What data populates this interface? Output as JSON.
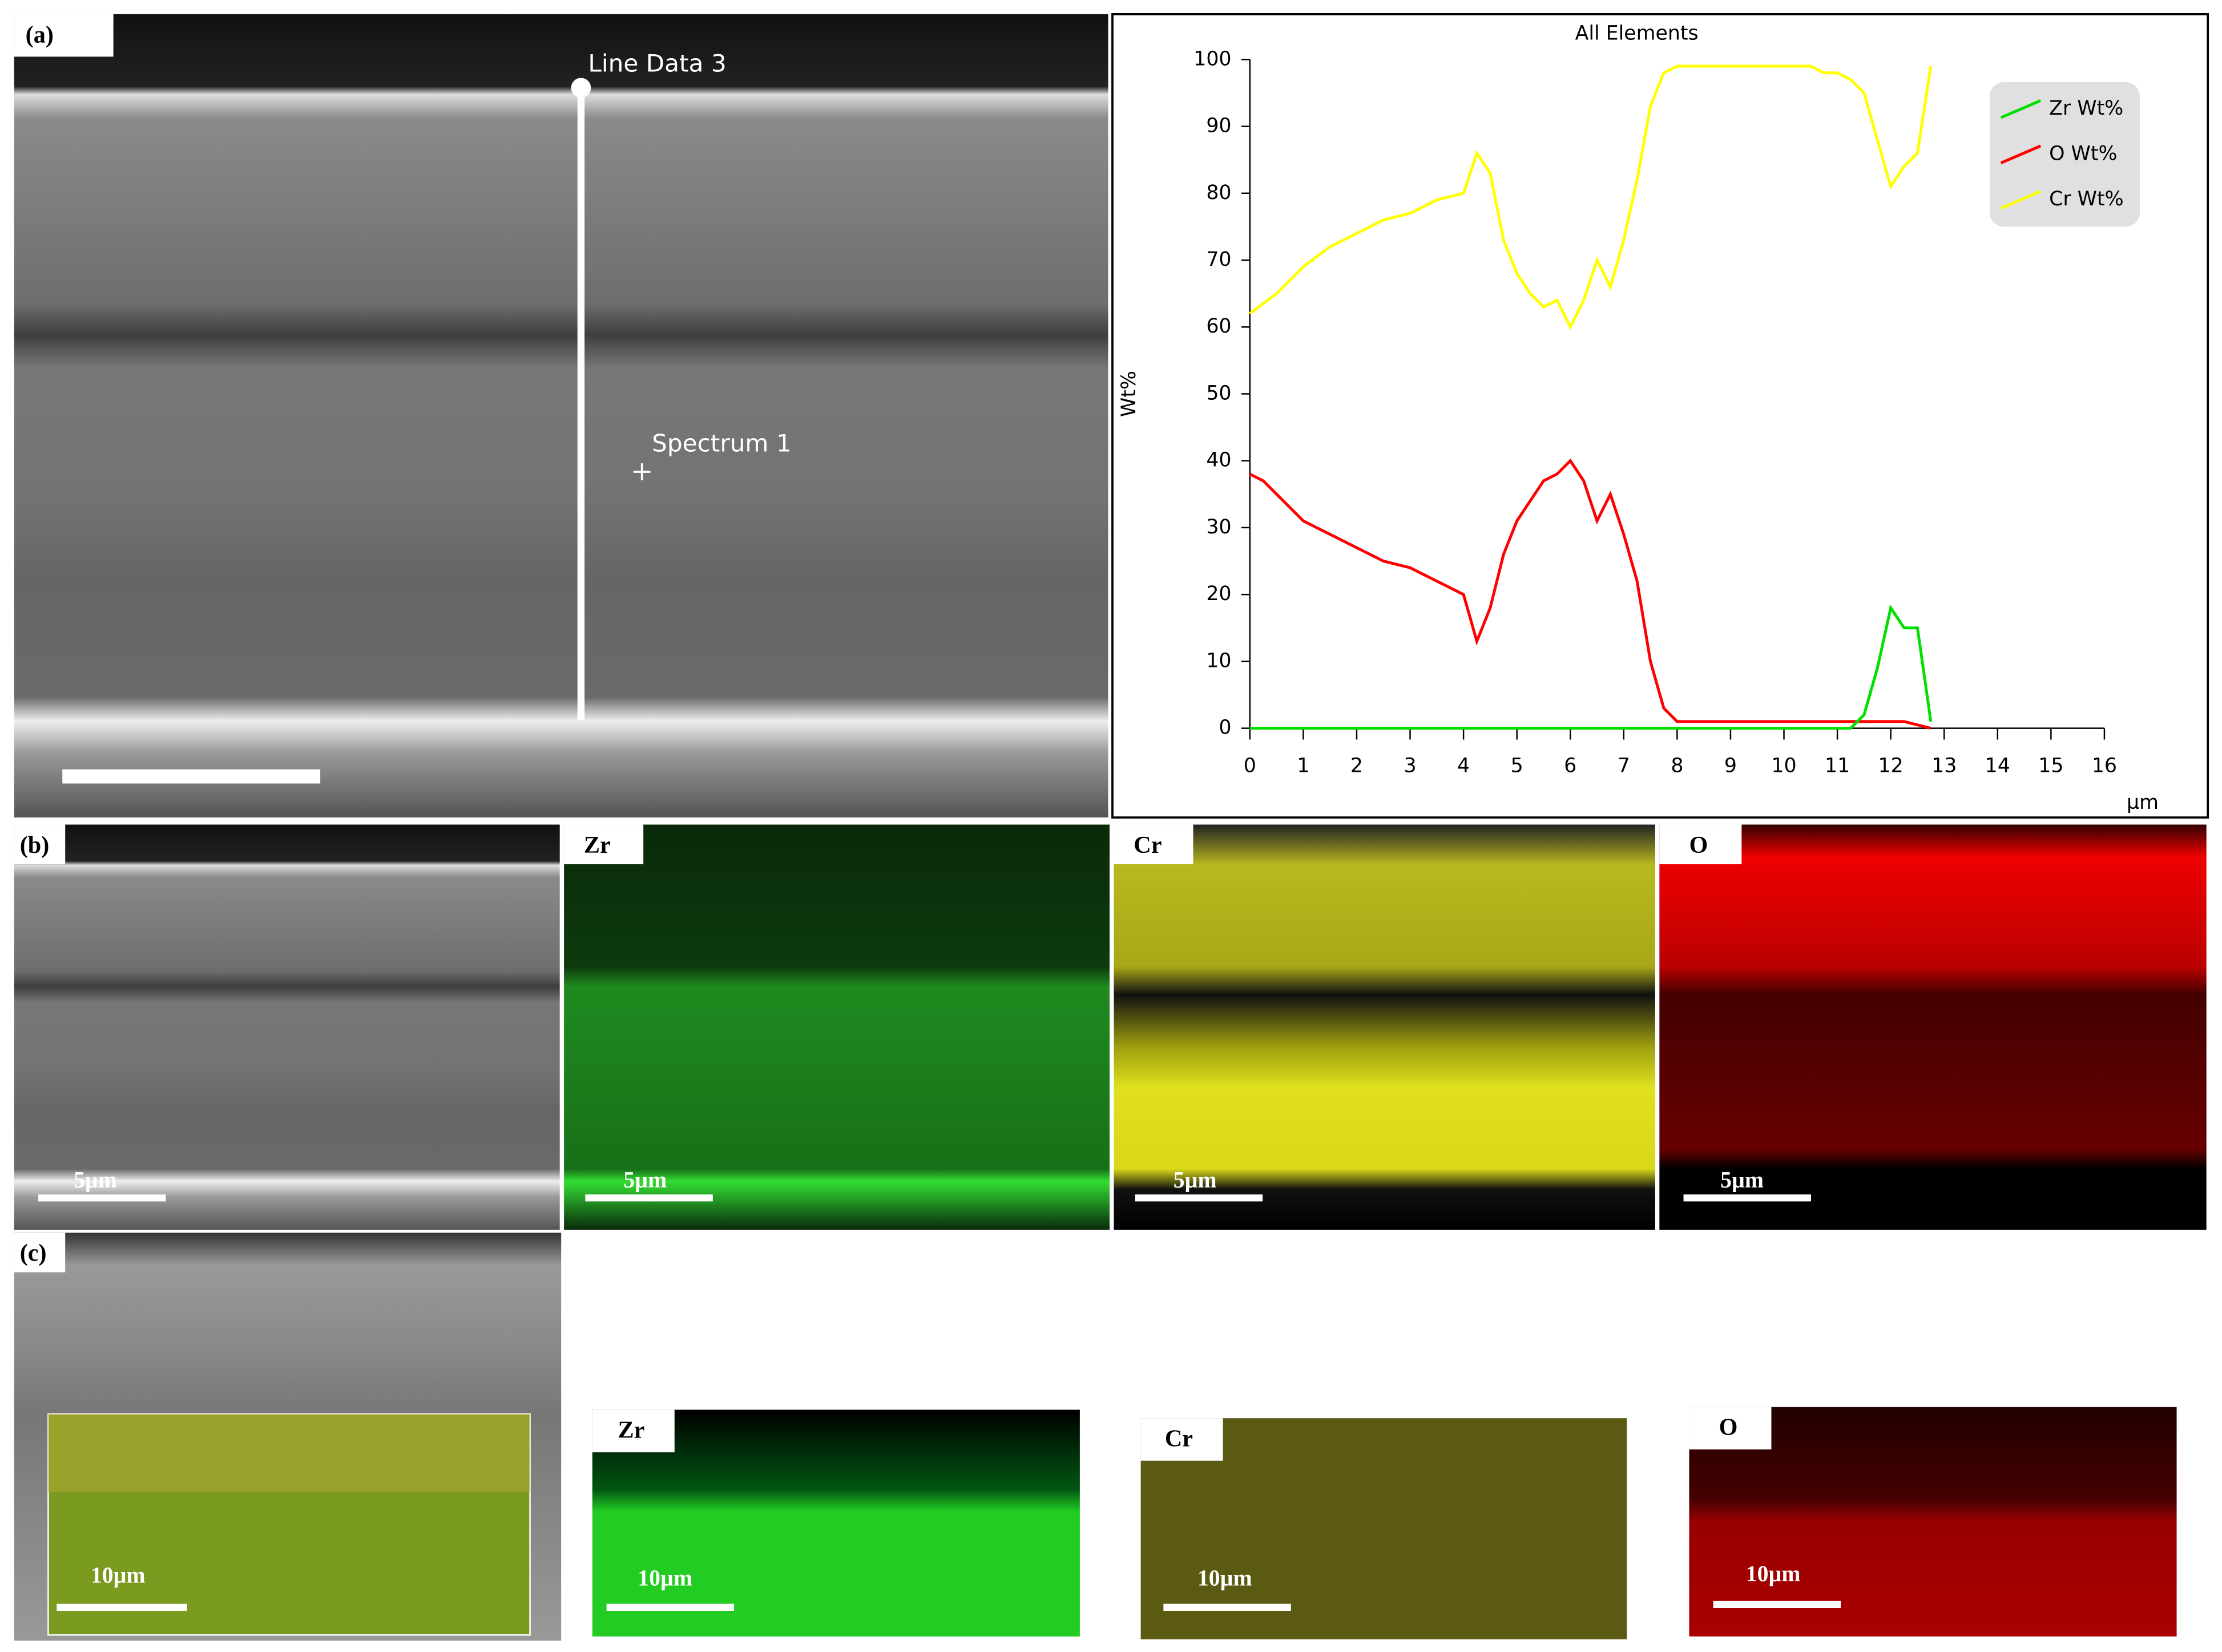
{
  "panels": {
    "a": {
      "label": "(a)",
      "line_label": "Line Data 3",
      "spectrum_label": "Spectrum 1"
    },
    "b": {
      "label": "(b)",
      "maps": [
        "Zr",
        "Cr",
        "O"
      ],
      "scale_bars": [
        "5µm",
        "5µm",
        "5µm",
        "5µm"
      ]
    },
    "c": {
      "label": "(c)",
      "maps": [
        "Zr",
        "Cr",
        "O"
      ],
      "scale_bars": [
        "10µm",
        "10µm",
        "10µm",
        "10µm"
      ]
    }
  },
  "chart_data": {
    "type": "line",
    "title": "All Elements",
    "y_label": "Wt%",
    "x_label": "µm",
    "x": [
      0,
      0.25,
      0.5,
      0.75,
      1,
      1.25,
      1.5,
      1.75,
      2,
      2.25,
      2.5,
      2.75,
      3,
      3.25,
      3.5,
      3.75,
      4,
      4.25,
      4.5,
      4.75,
      5,
      5.25,
      5.5,
      5.75,
      6,
      6.25,
      6.5,
      6.75,
      7,
      7.25,
      7.5,
      7.75,
      8,
      8.25,
      8.5,
      8.75,
      9,
      9.25,
      9.5,
      9.75,
      10,
      10.25,
      10.5,
      10.75,
      11,
      11.25,
      11.5,
      11.75,
      12,
      12.25,
      12.5,
      12.75
    ],
    "series": [
      {
        "name": "Zr Wt%",
        "color": "#00e000",
        "values": [
          0,
          0,
          0,
          0,
          0,
          0,
          0,
          0,
          0,
          0,
          0,
          0,
          0,
          0,
          0,
          0,
          0,
          0,
          0,
          0,
          0,
          0,
          0,
          0,
          0,
          0,
          0,
          0,
          0,
          0,
          0,
          0,
          0,
          0,
          0,
          0,
          0,
          0,
          0,
          0,
          0,
          0,
          0,
          0,
          0,
          0,
          2,
          9,
          18,
          15,
          15,
          1
        ]
      },
      {
        "name": "O Wt%",
        "color": "#ff0000",
        "values": [
          38,
          37,
          35,
          33,
          31,
          30,
          29,
          28,
          27,
          26,
          25,
          24.5,
          24,
          23,
          22,
          21,
          20,
          13,
          18,
          26,
          31,
          34,
          37,
          38,
          40,
          37,
          31,
          35,
          29,
          22,
          10,
          3,
          1,
          1,
          1,
          1,
          1,
          1,
          1,
          1,
          1,
          1,
          1,
          1,
          1,
          1,
          1,
          1,
          1,
          1,
          0.5,
          0
        ]
      },
      {
        "name": "Cr Wt%",
        "color": "#ffff00",
        "values": [
          62,
          63.5,
          65,
          67,
          69,
          70.5,
          72,
          73,
          74,
          75,
          76,
          76.5,
          77,
          78,
          79,
          79.5,
          80,
          86,
          83,
          73,
          68,
          65,
          63,
          64,
          60,
          64,
          70,
          66,
          73,
          82,
          93,
          98,
          99,
          99,
          99,
          99,
          99,
          99,
          99,
          99,
          99,
          99,
          99,
          98,
          98,
          97,
          95,
          88,
          81,
          84,
          86,
          99
        ]
      }
    ],
    "xlim": [
      0,
      16
    ],
    "ylim": [
      0,
      100
    ],
    "xticks": [
      0,
      1,
      2,
      3,
      4,
      5,
      6,
      7,
      8,
      9,
      10,
      11,
      12,
      13,
      14,
      15,
      16
    ],
    "yticks": [
      0,
      10,
      20,
      30,
      40,
      50,
      60,
      70,
      80,
      90,
      100
    ],
    "legend": "upper right"
  }
}
